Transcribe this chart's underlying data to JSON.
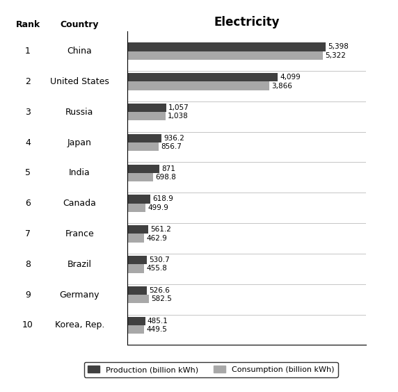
{
  "countries": [
    "China",
    "United States",
    "Russia",
    "Japan",
    "India",
    "Canada",
    "France",
    "Brazil",
    "Germany",
    "Korea, Rep."
  ],
  "ranks": [
    "1",
    "2",
    "3",
    "4",
    "5",
    "6",
    "7",
    "8",
    "9",
    "10"
  ],
  "production": [
    5398,
    4099,
    1057,
    936.2,
    871,
    618.9,
    561.2,
    530.7,
    526.6,
    485.1
  ],
  "consumption": [
    5322,
    3866,
    1038,
    856.7,
    698.8,
    499.9,
    462.9,
    455.8,
    582.5,
    449.5
  ],
  "prod_labels": [
    "5,398",
    "4,099",
    "1,057",
    "936.2",
    "871",
    "618.9",
    "561.2",
    "530.7",
    "526.6",
    "485.1"
  ],
  "cons_labels": [
    "5,322",
    "3,866",
    "1,038",
    "856.7",
    "698.8",
    "499.9",
    "462.9",
    "455.8",
    "582.5",
    "449.5"
  ],
  "production_color": "#404040",
  "consumption_color": "#a8a8a8",
  "title": "Electricity",
  "header_rank": "Rank",
  "header_country": "Country",
  "legend_production": "Production (billion kWh)",
  "legend_consumption": "Consumption (billion kWh)",
  "background_color": "#ffffff",
  "bar_height": 0.28,
  "xlim": [
    0,
    6500
  ]
}
